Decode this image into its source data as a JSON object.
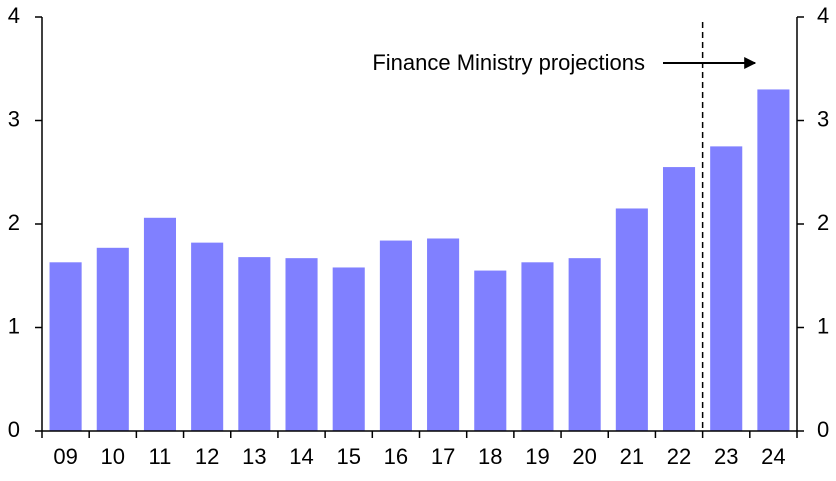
{
  "chart_data": {
    "type": "bar",
    "categories": [
      "09",
      "10",
      "11",
      "12",
      "13",
      "14",
      "15",
      "16",
      "17",
      "18",
      "19",
      "20",
      "21",
      "22",
      "23",
      "24"
    ],
    "values": [
      1.63,
      1.77,
      2.06,
      1.82,
      1.68,
      1.67,
      1.58,
      1.84,
      1.86,
      1.55,
      1.63,
      1.67,
      2.15,
      2.55,
      2.75,
      3.3
    ],
    "color": "#8080ff",
    "ylim": [
      0,
      4
    ],
    "yticks": [
      0,
      1,
      2,
      3,
      4
    ],
    "y2lim": [
      0,
      4
    ],
    "y2ticks": [
      0,
      1,
      2,
      3,
      4
    ],
    "annotation": "Finance Ministry projections",
    "grid": false
  }
}
